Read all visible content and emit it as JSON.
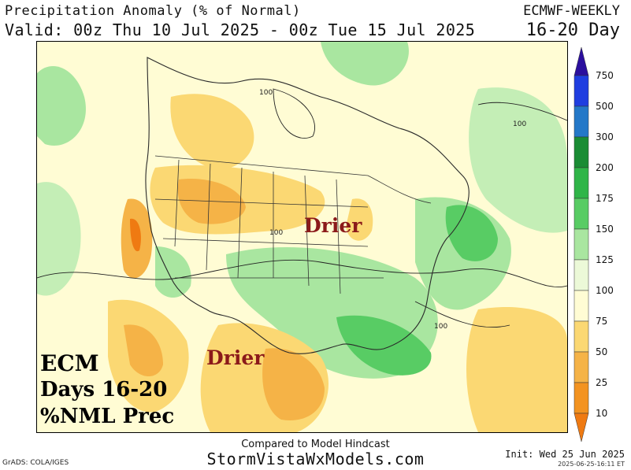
{
  "header": {
    "title": "Precipitation Anomaly (% of Normal)",
    "valid": "Valid: 00z Thu 10 Jul 2025 - 00z Tue 15 Jul 2025",
    "model": "ECMWF-WEEKLY",
    "period": "16-20 Day"
  },
  "map": {
    "annotations": {
      "drier_north": "Drier",
      "drier_south": "Drier",
      "ecm_line1": "ECM",
      "ecm_line2": "Days 16-20",
      "ecm_line3": "%NML Prec"
    },
    "contour_labels": [
      "100",
      "100",
      "100",
      "100"
    ]
  },
  "legend": {
    "levels": [
      "750",
      "500",
      "300",
      "200",
      "175",
      "150",
      "125",
      "100",
      "75",
      "50",
      "25",
      "10"
    ],
    "colors": [
      "#2b0f9e",
      "#1f3ee0",
      "#2478c8",
      "#1a8c34",
      "#2fb548",
      "#58cc64",
      "#a9e6a0",
      "#ecf9d8",
      "#fffcd4",
      "#fbd873",
      "#f5b347",
      "#f39320",
      "#ef7a12"
    ]
  },
  "footer": {
    "compared": "Compared to Model Hindcast",
    "site": "StormVistaWxModels.com",
    "credit": "GrADS: COLA/IGES",
    "init": "Init: Wed 25 Jun 2025",
    "stamp": "2025-06-25-16:11 ET"
  }
}
